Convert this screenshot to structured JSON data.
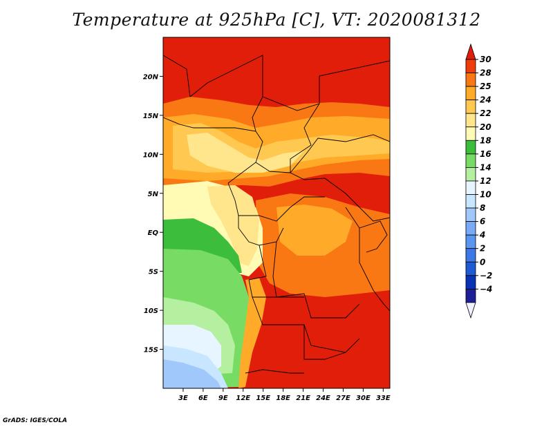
{
  "title": "Temperature at 925hPa [C], VT: 2020081312",
  "credit": "GrADS: IGES/COLA",
  "colors": {
    "c_lt_minus4": "#f0f0ff",
    "c_minus4": "#1e1e96",
    "c_minus2": "#0a32b4",
    "c_0": "#1e5ad2",
    "c_2": "#3c78e6",
    "c_4": "#5a96f0",
    "c_6": "#78aaf5",
    "c_8": "#a0c8fa",
    "c_10": "#c8e6ff",
    "c_12": "#e6f5ff",
    "c_14": "#b4f0a0",
    "c_16": "#78dc64",
    "c_18": "#3cbe3c",
    "c_20": "#fffab4",
    "c_22": "#ffe68c",
    "c_24": "#ffc850",
    "c_25": "#ffaa28",
    "c_28": "#fa7814",
    "c_30": "#f03c0a",
    "c_gt30": "#e11e0a",
    "border": "#000000"
  },
  "map": {
    "lon_range": [
      0,
      34
    ],
    "lat_range": [
      -20,
      25
    ],
    "lat_ticks": [
      {
        "v": 20,
        "label": "20N"
      },
      {
        "v": 15,
        "label": "15N"
      },
      {
        "v": 10,
        "label": "10N"
      },
      {
        "v": 5,
        "label": "5N"
      },
      {
        "v": 0,
        "label": "EQ"
      },
      {
        "v": -5,
        "label": "5S"
      },
      {
        "v": -10,
        "label": "10S"
      },
      {
        "v": -15,
        "label": "15S"
      }
    ],
    "lon_ticks": [
      {
        "v": 3,
        "label": "3E"
      },
      {
        "v": 6,
        "label": "6E"
      },
      {
        "v": 9,
        "label": "9E"
      },
      {
        "v": 12,
        "label": "12E"
      },
      {
        "v": 15,
        "label": "15E"
      },
      {
        "v": 18,
        "label": "18E"
      },
      {
        "v": 21,
        "label": "21E"
      },
      {
        "v": 24,
        "label": "24E"
      },
      {
        "v": 27,
        "label": "27E"
      },
      {
        "v": 30,
        "label": "30E"
      },
      {
        "v": 33,
        "label": "33E"
      }
    ]
  },
  "colorbar": {
    "labels": [
      "30",
      "28",
      "25",
      "24",
      "22",
      "20",
      "18",
      "16",
      "14",
      "12",
      "10",
      "8",
      "6",
      "4",
      "2",
      "0",
      "−2",
      "−4"
    ],
    "fills": [
      "c_gt30",
      "c_30",
      "c_28",
      "c_25",
      "c_24",
      "c_22",
      "c_20",
      "c_18",
      "c_16",
      "c_14",
      "c_12",
      "c_10",
      "c_8",
      "c_6",
      "c_4",
      "c_2",
      "c_0",
      "c_minus2",
      "c_minus4",
      "c_lt_minus4"
    ]
  }
}
